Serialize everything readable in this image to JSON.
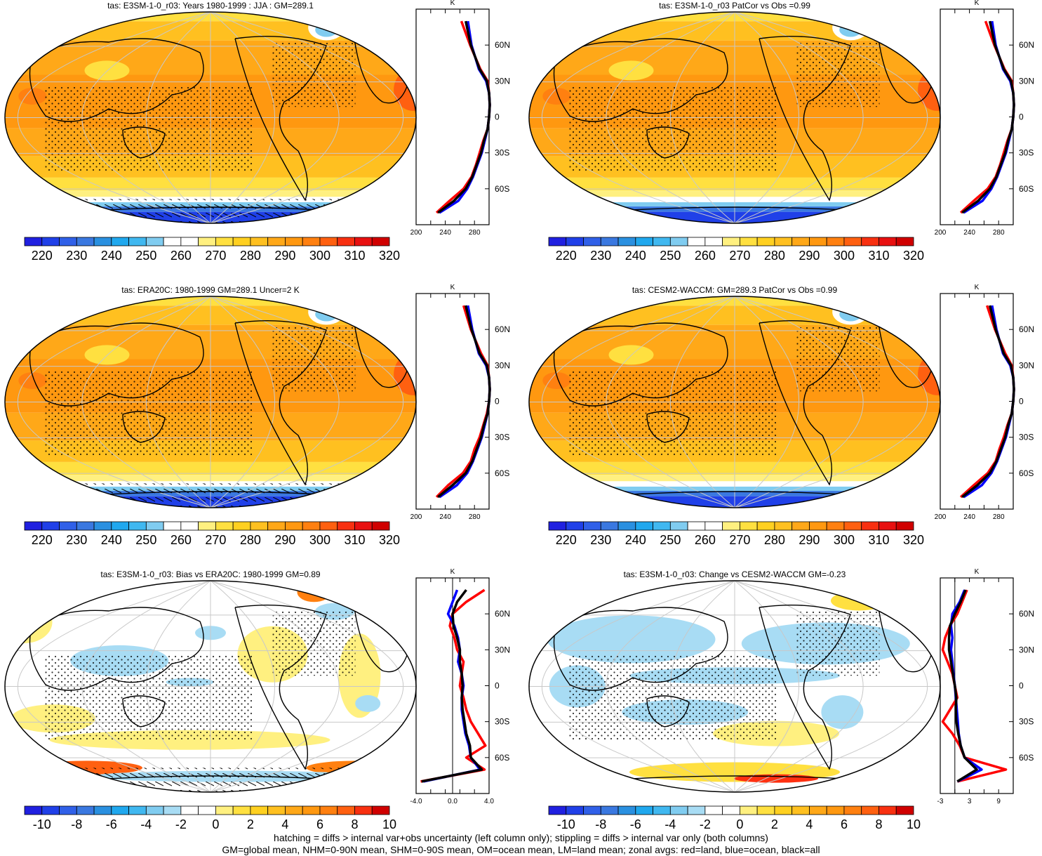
{
  "figure": {
    "footer_line1": "hatching = diffs > internal var+obs uncertainty (left column only); stippling = diffs > internal var only (both columns)",
    "footer_line2": "GM=global mean, NHM=0-90N mean, SHM=0-90S mean, OM=ocean mean, LM=land mean; zonal avgs: red=land, blue=ocean, black=all"
  },
  "colors": {
    "land": "#ff0000",
    "ocean": "#0000ff",
    "all": "#000000",
    "abs_palette": [
      "#2020e0",
      "#2040e8",
      "#3060e8",
      "#3a78e0",
      "#2a90e0",
      "#20a8ee",
      "#40b8f0",
      "#80ccf0",
      "#ffffff",
      "#ffffff",
      "#fff080",
      "#ffe040",
      "#ffd020",
      "#ffc020",
      "#ffa818",
      "#ff9810",
      "#ff8010",
      "#ff6010",
      "#f83010",
      "#e81010",
      "#d00000"
    ],
    "diff_palette": [
      "#2020e0",
      "#2040e8",
      "#3060e8",
      "#3a78e0",
      "#2a90e0",
      "#20a8ee",
      "#40b8f0",
      "#80ccf0",
      "#a8dcf4",
      "#ffffff",
      "#ffffff",
      "#fff080",
      "#ffe040",
      "#ffd020",
      "#ffc020",
      "#ffa818",
      "#ff9810",
      "#ff8010",
      "#ff6010",
      "#f83010",
      "#d00000"
    ]
  },
  "chart_data": [
    {
      "type": "heatmap",
      "title": "tas: E3SM-1-0_r03: Years 1980-1999 : JJA : GM=289.1",
      "colorbar": {
        "ticks": [
          "220",
          "230",
          "240",
          "250",
          "260",
          "270",
          "280",
          "290",
          "300",
          "310",
          "320"
        ],
        "palette": "abs"
      },
      "zonal": {
        "units": "K",
        "xticks": [
          "200",
          "240",
          "280"
        ],
        "yticks": [
          "60N",
          "30N",
          "0",
          "30S",
          "60S"
        ],
        "xlim": [
          200,
          300
        ],
        "lat": [
          80,
          60,
          40,
          30,
          20,
          10,
          0,
          -10,
          -20,
          -30,
          -40,
          -50,
          -60,
          -70,
          -80
        ],
        "land": [
          262,
          274,
          288,
          298,
          300,
          301,
          300,
          298,
          292,
          287,
          282,
          276,
          265,
          246,
          228
        ],
        "ocean": [
          271,
          276,
          286,
          296,
          300,
          301,
          300,
          298,
          294,
          290,
          284,
          278,
          270,
          258,
          232
        ],
        "all": [
          268,
          275,
          287,
          297,
          300,
          301,
          300,
          298,
          293,
          289,
          283,
          277,
          268,
          252,
          230
        ]
      }
    },
    {
      "type": "heatmap",
      "title": "tas: E3SM-1-0_r03 PatCor vs Obs =0.99",
      "colorbar": {
        "ticks": [
          "220",
          "230",
          "240",
          "250",
          "260",
          "270",
          "280",
          "290",
          "300",
          "310",
          "320"
        ],
        "palette": "abs"
      },
      "zonal": {
        "units": "K",
        "xticks": [
          "200",
          "240",
          "280"
        ],
        "yticks": [
          "60N",
          "30N",
          "0",
          "30S",
          "60S"
        ],
        "xlim": [
          200,
          300
        ],
        "lat": [
          80,
          60,
          40,
          30,
          20,
          10,
          0,
          -10,
          -20,
          -30,
          -40,
          -50,
          -60,
          -70,
          -80
        ],
        "land": [
          262,
          274,
          288,
          298,
          300,
          301,
          300,
          298,
          292,
          287,
          282,
          276,
          265,
          246,
          228
        ],
        "ocean": [
          271,
          276,
          286,
          296,
          300,
          301,
          300,
          298,
          294,
          290,
          284,
          278,
          270,
          258,
          232
        ],
        "all": [
          268,
          275,
          287,
          297,
          300,
          301,
          300,
          298,
          293,
          289,
          283,
          277,
          268,
          252,
          230
        ]
      }
    },
    {
      "type": "heatmap",
      "title": "tas: ERA20C: 1980-1999 GM=289.1 Uncer=2 K",
      "colorbar": {
        "ticks": [
          "220",
          "230",
          "240",
          "250",
          "260",
          "270",
          "280",
          "290",
          "300",
          "310",
          "320"
        ],
        "palette": "abs"
      },
      "zonal": {
        "units": "K",
        "xticks": [
          "200",
          "240",
          "280"
        ],
        "yticks": [
          "60N",
          "30N",
          "0",
          "30S",
          "60S"
        ],
        "xlim": [
          200,
          300
        ],
        "lat": [
          80,
          60,
          40,
          30,
          20,
          10,
          0,
          -10,
          -20,
          -30,
          -40,
          -50,
          -60,
          -70,
          -80
        ],
        "land": [
          265,
          275,
          289,
          298,
          300,
          301,
          300,
          297,
          292,
          287,
          280,
          275,
          264,
          244,
          228
        ],
        "ocean": [
          271,
          277,
          286,
          296,
          300,
          301,
          300,
          298,
          294,
          290,
          284,
          278,
          270,
          256,
          232
        ],
        "all": [
          268,
          276,
          287,
          297,
          300,
          301,
          300,
          298,
          293,
          289,
          283,
          277,
          268,
          250,
          230
        ]
      }
    },
    {
      "type": "heatmap",
      "title": "tas: CESM2-WACCM: GM=289.3 PatCor vs Obs =0.99",
      "colorbar": {
        "ticks": [
          "220",
          "230",
          "240",
          "250",
          "260",
          "270",
          "280",
          "290",
          "300",
          "310",
          "320"
        ],
        "palette": "abs"
      },
      "zonal": {
        "units": "K",
        "xticks": [
          "200",
          "240",
          "280"
        ],
        "yticks": [
          "60N",
          "30N",
          "0",
          "30S",
          "60S"
        ],
        "xlim": [
          200,
          300
        ],
        "lat": [
          80,
          60,
          40,
          30,
          20,
          10,
          0,
          -10,
          -20,
          -30,
          -40,
          -50,
          -60,
          -70,
          -80
        ],
        "land": [
          264,
          275,
          289,
          298,
          300,
          301,
          300,
          298,
          292,
          287,
          281,
          276,
          265,
          246,
          228
        ],
        "ocean": [
          271,
          277,
          286,
          296,
          300,
          301,
          300,
          298,
          294,
          290,
          284,
          278,
          270,
          257,
          232
        ],
        "all": [
          268,
          276,
          287,
          297,
          300,
          301,
          300,
          298,
          293,
          289,
          283,
          277,
          268,
          251,
          230
        ]
      }
    },
    {
      "type": "heatmap",
      "title": "tas: E3SM-1-0_r03: Bias vs ERA20C: 1980-1999 GM=0.89",
      "colorbar": {
        "ticks": [
          "-10",
          "-8",
          "-6",
          "-4",
          "-2",
          "0",
          "2",
          "4",
          "6",
          "8",
          "10"
        ],
        "palette": "diff"
      },
      "zonal": {
        "units": "K",
        "xticks": [
          "-4.0",
          "0.0",
          "4.0"
        ],
        "yticks": [
          "60N",
          "30N",
          "0",
          "30S",
          "60S"
        ],
        "xlim": [
          -4,
          4
        ],
        "lat": [
          80,
          70,
          60,
          50,
          40,
          30,
          20,
          10,
          0,
          -10,
          -20,
          -30,
          -40,
          -50,
          -60,
          -70,
          -80
        ],
        "land": [
          3.5,
          1.5,
          0.0,
          -0.3,
          0.2,
          0.5,
          1.2,
          1.0,
          0.8,
          1.2,
          1.5,
          2.0,
          2.8,
          3.6,
          1.5,
          3.5,
          -3.5
        ],
        "ocean": [
          0.5,
          0.0,
          -0.5,
          0.2,
          0.6,
          0.8,
          0.6,
          1.0,
          1.2,
          1.0,
          1.0,
          1.2,
          1.4,
          1.8,
          2.0,
          3.0,
          -3.2
        ],
        "all": [
          1.5,
          0.5,
          0.0,
          0.1,
          0.5,
          0.8,
          0.8,
          1.0,
          1.1,
          1.0,
          1.1,
          1.3,
          1.5,
          1.9,
          2.0,
          3.2,
          -3.4
        ]
      }
    },
    {
      "type": "heatmap",
      "title": "tas: E3SM-1-0_r03: Change vs CESM2-WACCM GM=-0.23",
      "colorbar": {
        "ticks": [
          "-10",
          "-8",
          "-6",
          "-4",
          "-2",
          "0",
          "2",
          "4",
          "6",
          "8",
          "10"
        ],
        "palette": "diff"
      },
      "zonal": {
        "units": "K",
        "xticks": [
          "-3",
          "3",
          "9"
        ],
        "yticks": [
          "60N",
          "30N",
          "0",
          "30S",
          "60S"
        ],
        "xlim": [
          -3,
          12
        ],
        "lat": [
          80,
          70,
          60,
          50,
          40,
          30,
          20,
          10,
          0,
          -10,
          -20,
          -30,
          -40,
          -50,
          -60,
          -70,
          -80
        ],
        "land": [
          2.5,
          1.5,
          0.5,
          -1.0,
          -2.0,
          -2.5,
          -1.5,
          -0.5,
          0.0,
          0.5,
          -1.0,
          -2.5,
          -0.5,
          1.0,
          2.0,
          10.5,
          0.5
        ],
        "ocean": [
          2.0,
          1.0,
          -0.5,
          -0.8,
          -0.5,
          -0.8,
          -0.5,
          -0.3,
          0.0,
          0.2,
          0.4,
          0.6,
          0.8,
          1.2,
          2.0,
          5.5,
          0.5
        ],
        "all": [
          2.2,
          1.2,
          0.0,
          -1.0,
          -1.2,
          -1.2,
          -0.8,
          -0.4,
          0.0,
          0.3,
          0.2,
          0.3,
          0.7,
          1.2,
          2.0,
          4.5,
          0.5
        ]
      }
    }
  ]
}
